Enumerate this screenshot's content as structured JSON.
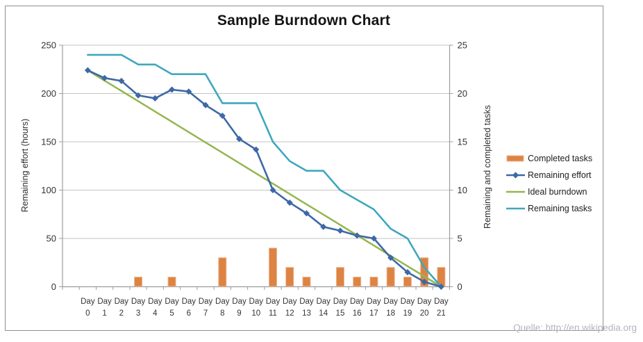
{
  "title": "Sample Burndown Chart",
  "watermark": "Quelle: http://en.wikipedia.org",
  "colors": {
    "completed_tasks": "#DD8343",
    "completed_tasks_edge": "#EDB68C",
    "remaining_effort": "#3E68A6",
    "ideal_burndown": "#94B64E",
    "remaining_tasks": "#3FA7BE",
    "gridline": "#C3C3C3",
    "axis_line": "#9C9C9C",
    "tick_text": "#333333",
    "title_text": "#141414",
    "border": "#8F8F8F",
    "watermark_text": "#B3B3C3"
  },
  "chart_data": {
    "type": "combo",
    "title": "Sample Burndown Chart",
    "categories": [
      "Day 0",
      "Day 1",
      "Day 2",
      "Day 3",
      "Day 4",
      "Day 5",
      "Day 6",
      "Day 7",
      "Day 8",
      "Day 9",
      "Day 10",
      "Day 11",
      "Day 12",
      "Day 13",
      "Day 14",
      "Day 15",
      "Day 16",
      "Day 17",
      "Day 18",
      "Day 19",
      "Day 20",
      "Day 21"
    ],
    "series": [
      {
        "name": "Completed tasks",
        "type": "bar",
        "axis": "right",
        "values": [
          0,
          0,
          0,
          1,
          0,
          1,
          0,
          0,
          3,
          0,
          0,
          4,
          2,
          1,
          0,
          2,
          1,
          1,
          2,
          1,
          3,
          2
        ]
      },
      {
        "name": "Remaining effort",
        "type": "line",
        "marker": "diamond",
        "axis": "left",
        "values": [
          224,
          216,
          213,
          198,
          195,
          204,
          202,
          188,
          177,
          153,
          142,
          100,
          87,
          76,
          62,
          58,
          53,
          50,
          30,
          15,
          5,
          0
        ]
      },
      {
        "name": "Ideal burndown",
        "type": "line",
        "marker": "none",
        "axis": "left",
        "values": [
          224,
          213.3,
          202.7,
          192,
          181.3,
          170.7,
          160,
          149.3,
          138.7,
          128,
          117.3,
          106.7,
          96,
          85.3,
          74.7,
          64,
          53.3,
          42.7,
          32,
          21.3,
          10.7,
          0
        ]
      },
      {
        "name": "Remaining tasks",
        "type": "line",
        "marker": "none",
        "axis": "right",
        "values": [
          24,
          24,
          24,
          23,
          23,
          22,
          22,
          22,
          19,
          19,
          19,
          15,
          13,
          12,
          12,
          10,
          9,
          8,
          6,
          5,
          2,
          0
        ]
      }
    ],
    "left_axis": {
      "title": "Remaining effort (hours)",
      "min": 0,
      "max": 250,
      "step": 50,
      "ticks": [
        0,
        50,
        100,
        150,
        200,
        250
      ]
    },
    "right_axis": {
      "title": "Remaining and completed tasks",
      "min": 0,
      "max": 25,
      "step": 5,
      "ticks": [
        0,
        5,
        10,
        15,
        20,
        25
      ]
    },
    "x_axis": {
      "label_line1": "Day",
      "days": [
        0,
        1,
        2,
        3,
        4,
        5,
        6,
        7,
        8,
        9,
        10,
        11,
        12,
        13,
        14,
        15,
        16,
        17,
        18,
        19,
        20,
        21
      ]
    },
    "legend": {
      "position": "right",
      "items": [
        "Completed tasks",
        "Remaining effort",
        "Ideal burndown",
        "Remaining tasks"
      ]
    },
    "grid": "horizontal"
  }
}
